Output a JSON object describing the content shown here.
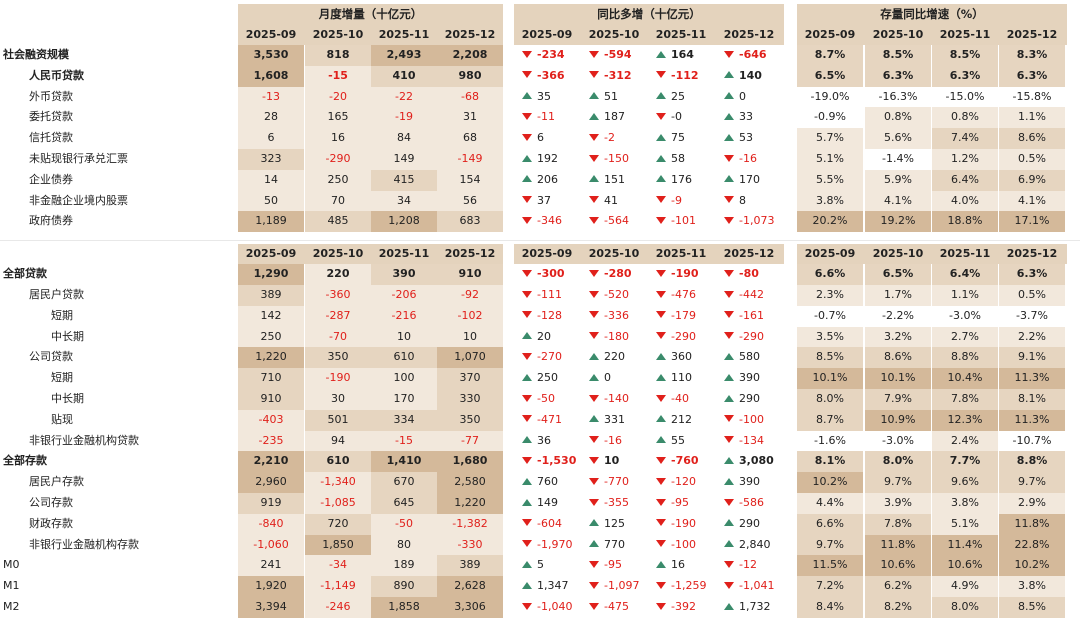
{
  "columns": [
    "2025-09",
    "2025-10",
    "2025-11",
    "2025-12"
  ],
  "section_headers": {
    "monthly": "月度增量（十亿元）",
    "yoy": "同比多增（十亿元）",
    "growth": "存量同比增速（%）"
  },
  "colors": {
    "negative": "#e0201b",
    "up_arrow": "#3a8b6b",
    "header_band": "#e4d3bd",
    "cell_light": "#f2e8dc",
    "cell_mid": "#e6d5c0",
    "cell_dark": "#d4b99a"
  },
  "table1": {
    "rows": [
      {
        "label": "社会融资规模",
        "indent": 0,
        "bold": true,
        "monthly": [
          "3,530",
          "818",
          "2,493",
          "2,208"
        ],
        "yoy": [
          {
            "v": "-234",
            "d": "down"
          },
          {
            "v": "-594",
            "d": "down"
          },
          {
            "v": "164",
            "d": "up"
          },
          {
            "v": "-646",
            "d": "down"
          }
        ],
        "growth": [
          "8.7%",
          "8.5%",
          "8.5%",
          "8.3%"
        ]
      },
      {
        "label": "人民币贷款",
        "indent": 1,
        "bold": true,
        "monthly": [
          "1,608",
          "-15",
          "410",
          "980"
        ],
        "yoy": [
          {
            "v": "-366",
            "d": "down"
          },
          {
            "v": "-312",
            "d": "down"
          },
          {
            "v": "-112",
            "d": "down"
          },
          {
            "v": "140",
            "d": "up"
          }
        ],
        "growth": [
          "6.5%",
          "6.3%",
          "6.3%",
          "6.3%"
        ]
      },
      {
        "label": "外币贷款",
        "indent": 1,
        "bold": false,
        "monthly": [
          "-13",
          "-20",
          "-22",
          "-68"
        ],
        "yoy": [
          {
            "v": "35",
            "d": "up"
          },
          {
            "v": "51",
            "d": "up"
          },
          {
            "v": "25",
            "d": "up"
          },
          {
            "v": "0",
            "d": "up"
          }
        ],
        "growth": [
          "-19.0%",
          "-16.3%",
          "-15.0%",
          "-15.8%"
        ]
      },
      {
        "label": "委托贷款",
        "indent": 1,
        "bold": false,
        "monthly": [
          "28",
          "165",
          "-19",
          "31"
        ],
        "yoy": [
          {
            "v": "-11",
            "d": "down"
          },
          {
            "v": "187",
            "d": "up"
          },
          {
            "v": "-0",
            "d": "down"
          },
          {
            "v": "33",
            "d": "up"
          }
        ],
        "growth": [
          "-0.9%",
          "0.8%",
          "0.8%",
          "1.1%"
        ]
      },
      {
        "label": "信托贷款",
        "indent": 1,
        "bold": false,
        "monthly": [
          "6",
          "16",
          "84",
          "68"
        ],
        "yoy": [
          {
            "v": "6",
            "d": "down"
          },
          {
            "v": "-2",
            "d": "down"
          },
          {
            "v": "75",
            "d": "up"
          },
          {
            "v": "53",
            "d": "up"
          }
        ],
        "growth": [
          "5.7%",
          "5.6%",
          "7.4%",
          "8.6%"
        ]
      },
      {
        "label": "未贴现银行承兑汇票",
        "indent": 1,
        "bold": false,
        "monthly": [
          "323",
          "-290",
          "149",
          "-149"
        ],
        "yoy": [
          {
            "v": "192",
            "d": "up"
          },
          {
            "v": "-150",
            "d": "down"
          },
          {
            "v": "58",
            "d": "up"
          },
          {
            "v": "-16",
            "d": "down"
          }
        ],
        "growth": [
          "5.1%",
          "-1.4%",
          "1.2%",
          "0.5%"
        ]
      },
      {
        "label": "企业债券",
        "indent": 1,
        "bold": false,
        "monthly": [
          "14",
          "250",
          "415",
          "154"
        ],
        "yoy": [
          {
            "v": "206",
            "d": "up"
          },
          {
            "v": "151",
            "d": "up"
          },
          {
            "v": "176",
            "d": "up"
          },
          {
            "v": "170",
            "d": "up"
          }
        ],
        "growth": [
          "5.5%",
          "5.9%",
          "6.4%",
          "6.9%"
        ]
      },
      {
        "label": "非金融企业境内股票",
        "indent": 1,
        "bold": false,
        "monthly": [
          "50",
          "70",
          "34",
          "56"
        ],
        "yoy": [
          {
            "v": "37",
            "d": "down"
          },
          {
            "v": "41",
            "d": "down"
          },
          {
            "v": "-9",
            "d": "down"
          },
          {
            "v": "8",
            "d": "down"
          }
        ],
        "growth": [
          "3.8%",
          "4.1%",
          "4.0%",
          "4.1%"
        ]
      },
      {
        "label": "政府债券",
        "indent": 1,
        "bold": false,
        "monthly": [
          "1,189",
          "485",
          "1,208",
          "683"
        ],
        "yoy": [
          {
            "v": "-346",
            "d": "down"
          },
          {
            "v": "-564",
            "d": "down"
          },
          {
            "v": "-101",
            "d": "down"
          },
          {
            "v": "-1,073",
            "d": "down"
          }
        ],
        "growth": [
          "20.2%",
          "19.2%",
          "18.8%",
          "17.1%"
        ]
      }
    ]
  },
  "table2": {
    "rows": [
      {
        "label": "全部贷款",
        "indent": 0,
        "bold": true,
        "monthly": [
          "1,290",
          "220",
          "390",
          "910"
        ],
        "yoy": [
          {
            "v": "-300",
            "d": "down"
          },
          {
            "v": "-280",
            "d": "down"
          },
          {
            "v": "-190",
            "d": "down"
          },
          {
            "v": "-80",
            "d": "down"
          }
        ],
        "growth": [
          "6.6%",
          "6.5%",
          "6.4%",
          "6.3%"
        ]
      },
      {
        "label": "居民户贷款",
        "indent": 1,
        "bold": false,
        "monthly": [
          "389",
          "-360",
          "-206",
          "-92"
        ],
        "yoy": [
          {
            "v": "-111",
            "d": "down"
          },
          {
            "v": "-520",
            "d": "down"
          },
          {
            "v": "-476",
            "d": "down"
          },
          {
            "v": "-442",
            "d": "down"
          }
        ],
        "growth": [
          "2.3%",
          "1.7%",
          "1.1%",
          "0.5%"
        ]
      },
      {
        "label": "短期",
        "indent": 2,
        "bold": false,
        "monthly": [
          "142",
          "-287",
          "-216",
          "-102"
        ],
        "yoy": [
          {
            "v": "-128",
            "d": "down"
          },
          {
            "v": "-336",
            "d": "down"
          },
          {
            "v": "-179",
            "d": "down"
          },
          {
            "v": "-161",
            "d": "down"
          }
        ],
        "growth": [
          "-0.7%",
          "-2.2%",
          "-3.0%",
          "-3.7%"
        ]
      },
      {
        "label": "中长期",
        "indent": 2,
        "bold": false,
        "monthly": [
          "250",
          "-70",
          "10",
          "10"
        ],
        "yoy": [
          {
            "v": "20",
            "d": "up"
          },
          {
            "v": "-180",
            "d": "down"
          },
          {
            "v": "-290",
            "d": "down"
          },
          {
            "v": "-290",
            "d": "down"
          }
        ],
        "growth": [
          "3.5%",
          "3.2%",
          "2.7%",
          "2.2%"
        ]
      },
      {
        "label": "公司贷款",
        "indent": 1,
        "bold": false,
        "monthly": [
          "1,220",
          "350",
          "610",
          "1,070"
        ],
        "yoy": [
          {
            "v": "-270",
            "d": "down"
          },
          {
            "v": "220",
            "d": "up"
          },
          {
            "v": "360",
            "d": "up"
          },
          {
            "v": "580",
            "d": "up"
          }
        ],
        "growth": [
          "8.5%",
          "8.6%",
          "8.8%",
          "9.1%"
        ]
      },
      {
        "label": "短期",
        "indent": 2,
        "bold": false,
        "monthly": [
          "710",
          "-190",
          "100",
          "370"
        ],
        "yoy": [
          {
            "v": "250",
            "d": "up"
          },
          {
            "v": "0",
            "d": "up"
          },
          {
            "v": "110",
            "d": "up"
          },
          {
            "v": "390",
            "d": "up"
          }
        ],
        "growth": [
          "10.1%",
          "10.1%",
          "10.4%",
          "11.3%"
        ]
      },
      {
        "label": "中长期",
        "indent": 2,
        "bold": false,
        "monthly": [
          "910",
          "30",
          "170",
          "330"
        ],
        "yoy": [
          {
            "v": "-50",
            "d": "down"
          },
          {
            "v": "-140",
            "d": "down"
          },
          {
            "v": "-40",
            "d": "down"
          },
          {
            "v": "290",
            "d": "up"
          }
        ],
        "growth": [
          "8.0%",
          "7.9%",
          "7.8%",
          "8.1%"
        ]
      },
      {
        "label": "贴现",
        "indent": 2,
        "bold": false,
        "monthly": [
          "-403",
          "501",
          "334",
          "350"
        ],
        "yoy": [
          {
            "v": "-471",
            "d": "down"
          },
          {
            "v": "331",
            "d": "up"
          },
          {
            "v": "212",
            "d": "up"
          },
          {
            "v": "-100",
            "d": "down"
          }
        ],
        "growth": [
          "8.7%",
          "10.9%",
          "12.3%",
          "11.3%"
        ]
      },
      {
        "label": "非银行业金融机构贷款",
        "indent": 1,
        "bold": false,
        "monthly": [
          "-235",
          "94",
          "-15",
          "-77"
        ],
        "yoy": [
          {
            "v": "36",
            "d": "up"
          },
          {
            "v": "-16",
            "d": "down"
          },
          {
            "v": "55",
            "d": "up"
          },
          {
            "v": "-134",
            "d": "down"
          }
        ],
        "growth": [
          "-1.6%",
          "-3.0%",
          "2.4%",
          "-10.7%"
        ]
      },
      {
        "label": "全部存款",
        "indent": 0,
        "bold": true,
        "monthly": [
          "2,210",
          "610",
          "1,410",
          "1,680"
        ],
        "yoy": [
          {
            "v": "-1,530",
            "d": "down"
          },
          {
            "v": "10",
            "d": "down"
          },
          {
            "v": "-760",
            "d": "down"
          },
          {
            "v": "3,080",
            "d": "up"
          }
        ],
        "growth": [
          "8.1%",
          "8.0%",
          "7.7%",
          "8.8%"
        ]
      },
      {
        "label": "居民户存款",
        "indent": 1,
        "bold": false,
        "monthly": [
          "2,960",
          "-1,340",
          "670",
          "2,580"
        ],
        "yoy": [
          {
            "v": "760",
            "d": "up"
          },
          {
            "v": "-770",
            "d": "down"
          },
          {
            "v": "-120",
            "d": "down"
          },
          {
            "v": "390",
            "d": "up"
          }
        ],
        "growth": [
          "10.2%",
          "9.7%",
          "9.6%",
          "9.7%"
        ]
      },
      {
        "label": "公司存款",
        "indent": 1,
        "bold": false,
        "monthly": [
          "919",
          "-1,085",
          "645",
          "1,220"
        ],
        "yoy": [
          {
            "v": "149",
            "d": "up"
          },
          {
            "v": "-355",
            "d": "down"
          },
          {
            "v": "-95",
            "d": "down"
          },
          {
            "v": "-586",
            "d": "down"
          }
        ],
        "growth": [
          "4.4%",
          "3.9%",
          "3.8%",
          "2.9%"
        ]
      },
      {
        "label": "财政存款",
        "indent": 1,
        "bold": false,
        "monthly": [
          "-840",
          "720",
          "-50",
          "-1,382"
        ],
        "yoy": [
          {
            "v": "-604",
            "d": "down"
          },
          {
            "v": "125",
            "d": "up"
          },
          {
            "v": "-190",
            "d": "down"
          },
          {
            "v": "290",
            "d": "up"
          }
        ],
        "growth": [
          "6.6%",
          "7.8%",
          "5.1%",
          "11.8%"
        ]
      },
      {
        "label": "非银行业金融机构存款",
        "indent": 1,
        "bold": false,
        "monthly": [
          "-1,060",
          "1,850",
          "80",
          "-330"
        ],
        "yoy": [
          {
            "v": "-1,970",
            "d": "down"
          },
          {
            "v": "770",
            "d": "up"
          },
          {
            "v": "-100",
            "d": "down"
          },
          {
            "v": "2,840",
            "d": "up"
          }
        ],
        "growth": [
          "9.7%",
          "11.8%",
          "11.4%",
          "22.8%"
        ]
      },
      {
        "label": "M0",
        "indent": 0,
        "bold": false,
        "monthly": [
          "241",
          "-34",
          "189",
          "389"
        ],
        "yoy": [
          {
            "v": "5",
            "d": "up"
          },
          {
            "v": "-95",
            "d": "down"
          },
          {
            "v": "16",
            "d": "up"
          },
          {
            "v": "-12",
            "d": "down"
          }
        ],
        "growth": [
          "11.5%",
          "10.6%",
          "10.6%",
          "10.2%"
        ]
      },
      {
        "label": "M1",
        "indent": 0,
        "bold": false,
        "monthly": [
          "1,920",
          "-1,149",
          "890",
          "2,628"
        ],
        "yoy": [
          {
            "v": "1,347",
            "d": "up"
          },
          {
            "v": "-1,097",
            "d": "down"
          },
          {
            "v": "-1,259",
            "d": "down"
          },
          {
            "v": "-1,041",
            "d": "down"
          }
        ],
        "growth": [
          "7.2%",
          "6.2%",
          "4.9%",
          "3.8%"
        ]
      },
      {
        "label": "M2",
        "indent": 0,
        "bold": false,
        "monthly": [
          "3,394",
          "-246",
          "1,858",
          "3,306"
        ],
        "yoy": [
          {
            "v": "-1,040",
            "d": "down"
          },
          {
            "v": "-475",
            "d": "down"
          },
          {
            "v": "-392",
            "d": "down"
          },
          {
            "v": "1,732",
            "d": "up"
          }
        ],
        "growth": [
          "8.4%",
          "8.2%",
          "8.0%",
          "8.5%"
        ]
      }
    ]
  }
}
